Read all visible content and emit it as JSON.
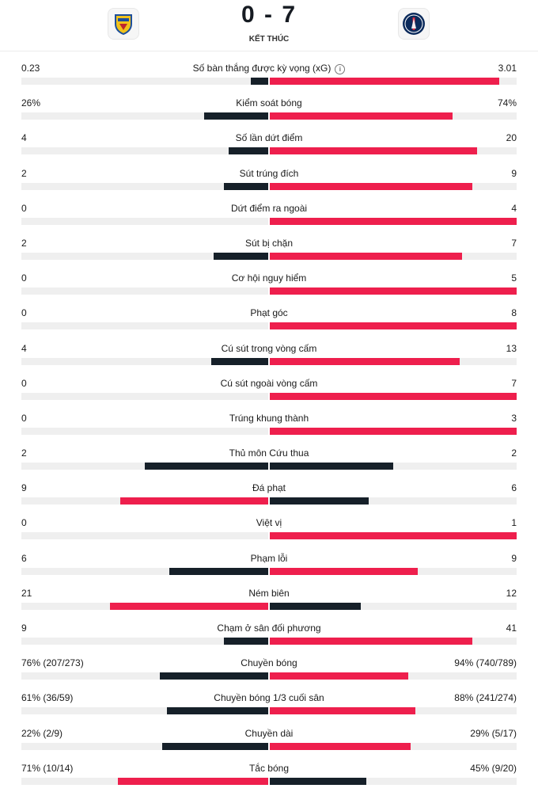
{
  "header": {
    "score": "0 - 7",
    "status": "KẾT THÚC",
    "home_crest": "le-mans-crest-icon",
    "away_crest": "psg-crest-icon"
  },
  "colors": {
    "leader": "#ee1f4d",
    "trailer": "#162029",
    "track": "#efefef"
  },
  "stats": [
    {
      "label": "Số bàn thắng được kỳ vọng (xG)",
      "home": "0.23",
      "away": "3.01",
      "home_share": 0.07,
      "away_share": 0.93,
      "info": true
    },
    {
      "label": "Kiểm soát bóng",
      "home": "26%",
      "away": "74%",
      "home_share": 0.26,
      "away_share": 0.74
    },
    {
      "label": "Số lần dứt điểm",
      "home": "4",
      "away": "20",
      "home_share": 0.16,
      "away_share": 0.84
    },
    {
      "label": "Sút trúng đích",
      "home": "2",
      "away": "9",
      "home_share": 0.18,
      "away_share": 0.82
    },
    {
      "label": "Dứt điểm ra ngoài",
      "home": "0",
      "away": "4",
      "home_share": 0,
      "away_share": 1
    },
    {
      "label": "Sút bị chặn",
      "home": "2",
      "away": "7",
      "home_share": 0.22,
      "away_share": 0.78
    },
    {
      "label": "Cơ hội nguy hiểm",
      "home": "0",
      "away": "5",
      "home_share": 0,
      "away_share": 1
    },
    {
      "label": "Phạt góc",
      "home": "0",
      "away": "8",
      "home_share": 0,
      "away_share": 1
    },
    {
      "label": "Cú sút trong vòng cấm",
      "home": "4",
      "away": "13",
      "home_share": 0.23,
      "away_share": 0.77
    },
    {
      "label": "Cú sút ngoài vòng cấm",
      "home": "0",
      "away": "7",
      "home_share": 0,
      "away_share": 1
    },
    {
      "label": "Trúng khung thành",
      "home": "0",
      "away": "3",
      "home_share": 0,
      "away_share": 1
    },
    {
      "label": "Thủ môn Cứu thua",
      "home": "2",
      "away": "2",
      "home_share": 0.5,
      "away_share": 0.5
    },
    {
      "label": "Đá phạt",
      "home": "9",
      "away": "6",
      "home_share": 0.6,
      "away_share": 0.4
    },
    {
      "label": "Việt vị",
      "home": "0",
      "away": "1",
      "home_share": 0,
      "away_share": 1
    },
    {
      "label": "Phạm lỗi",
      "home": "6",
      "away": "9",
      "home_share": 0.4,
      "away_share": 0.6
    },
    {
      "label": "Ném biên",
      "home": "21",
      "away": "12",
      "home_share": 0.64,
      "away_share": 0.37
    },
    {
      "label": "Chạm ở sân đối phương",
      "home": "9",
      "away": "41",
      "home_share": 0.18,
      "away_share": 0.82
    },
    {
      "label": "Chuyền bóng",
      "home": "76% (207/273)",
      "away": "94% (740/789)",
      "home_share": 0.44,
      "away_share": 0.56
    },
    {
      "label": "Chuyền bóng 1/3 cuối sân",
      "home": "61% (36/59)",
      "away": "88% (241/274)",
      "home_share": 0.41,
      "away_share": 0.59
    },
    {
      "label": "Chuyền dài",
      "home": "22% (2/9)",
      "away": "29% (5/17)",
      "home_share": 0.43,
      "away_share": 0.57
    },
    {
      "label": "Tắc bóng",
      "home": "71% (10/14)",
      "away": "45% (9/20)",
      "home_share": 0.61,
      "away_share": 0.39
    }
  ]
}
